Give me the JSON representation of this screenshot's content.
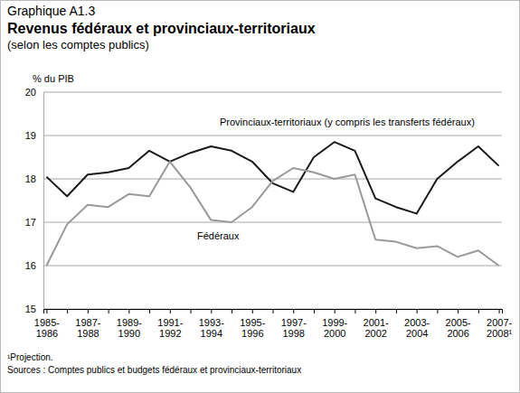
{
  "chart_data": {
    "type": "line",
    "figure_number": "Graphique A1.3",
    "title": "Revenus fédéraux et provinciaux-territoriaux",
    "subtitle": "(selon les comptes publics)",
    "ylabel": "% du PIB",
    "categories": [
      "1985-1986",
      null,
      "1987-1988",
      null,
      "1989-1990",
      null,
      "1991-1992",
      null,
      "1993-1994",
      null,
      "1995-1996",
      null,
      "1997-1998",
      null,
      "1999-2000",
      null,
      "2001-2002",
      null,
      "2003-2004",
      null,
      "2005-2006",
      null,
      "2007-2008¹"
    ],
    "series": [
      {
        "name": "Provinciaux-territoriaux (y compris les transferts fédéraux)",
        "color": "#1a1a1a",
        "values": [
          18.05,
          17.6,
          18.1,
          18.15,
          18.25,
          18.65,
          18.4,
          18.6,
          18.75,
          18.65,
          18.4,
          17.9,
          17.7,
          18.5,
          18.85,
          18.65,
          17.55,
          17.35,
          17.2,
          18.0,
          18.4,
          18.75,
          18.3
        ]
      },
      {
        "name": "Fédéraux",
        "color": "#9a9a9a",
        "values": [
          16.0,
          16.95,
          17.4,
          17.35,
          17.65,
          17.6,
          18.4,
          17.8,
          17.05,
          17.0,
          17.35,
          17.95,
          18.25,
          18.15,
          18.0,
          18.1,
          16.6,
          16.55,
          16.4,
          16.45,
          16.2,
          16.35,
          16.0
        ]
      }
    ],
    "ylim": [
      15,
      20
    ],
    "yticks": [
      15,
      16,
      17,
      18,
      19,
      20
    ],
    "grid": true,
    "notes": [
      "¹Projection.",
      "Sources : Comptes publics et budgets fédéraux et provinciaux-territoriaux"
    ]
  }
}
